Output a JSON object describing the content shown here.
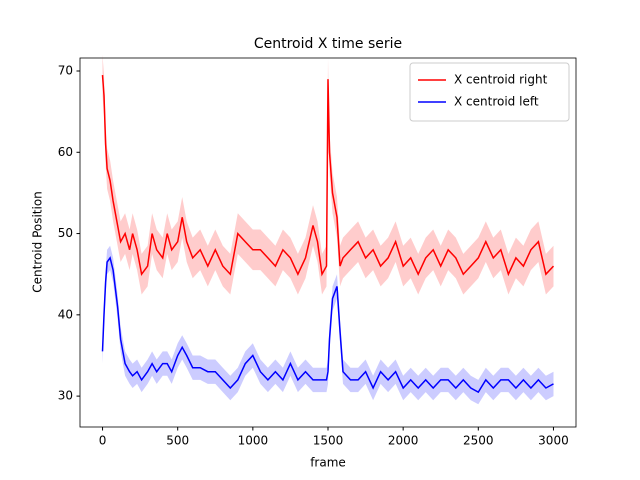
{
  "chart_data": {
    "type": "line",
    "title": "Centroid X time serie",
    "xlabel": "frame",
    "ylabel": "Centroid Position",
    "x": [
      0,
      10,
      20,
      30,
      50,
      70,
      100,
      120,
      150,
      180,
      200,
      230,
      260,
      300,
      330,
      360,
      400,
      430,
      460,
      500,
      530,
      560,
      600,
      650,
      700,
      750,
      800,
      850,
      900,
      950,
      1000,
      1050,
      1100,
      1150,
      1200,
      1250,
      1300,
      1350,
      1400,
      1430,
      1460,
      1490,
      1500,
      1510,
      1530,
      1560,
      1580,
      1600,
      1650,
      1700,
      1750,
      1800,
      1850,
      1900,
      1950,
      2000,
      2050,
      2100,
      2150,
      2200,
      2250,
      2300,
      2350,
      2400,
      2450,
      2500,
      2550,
      2600,
      2650,
      2700,
      2750,
      2800,
      2850,
      2900,
      2950,
      3000
    ],
    "series": [
      {
        "name": "X centroid right",
        "color": "#ff0000",
        "error": 2.5,
        "values": [
          69.5,
          67,
          61,
          58,
          56.5,
          54,
          51,
          49,
          50,
          48,
          50,
          48,
          45,
          46,
          50,
          48,
          47,
          50,
          48,
          49,
          52,
          49,
          47,
          48,
          46,
          48,
          46,
          45,
          50,
          49,
          48,
          48,
          47,
          46,
          48,
          47,
          45,
          47,
          51,
          49,
          45,
          46,
          69,
          60,
          55,
          52,
          46,
          47,
          48,
          49,
          47,
          48,
          46,
          47,
          49,
          46,
          47,
          45,
          47,
          48,
          46,
          48,
          47,
          45,
          46,
          47,
          49,
          47,
          48,
          45,
          47,
          46,
          48,
          49,
          45,
          46
        ]
      },
      {
        "name": "X centroid left",
        "color": "#0000ff",
        "error": 1.5,
        "values": [
          35.5,
          40,
          44,
          46.5,
          47,
          45.5,
          41,
          37,
          34,
          33,
          32.5,
          33,
          32,
          33,
          34,
          33,
          34,
          34,
          33,
          35,
          36,
          35,
          33.5,
          33.5,
          33,
          33,
          32,
          31,
          32,
          34,
          35,
          33,
          32,
          33,
          32,
          34,
          32,
          33,
          32,
          32,
          32,
          32,
          33,
          37,
          42,
          43.5,
          38,
          33,
          32,
          32,
          33,
          31,
          33,
          32,
          33,
          31,
          32,
          31,
          32,
          31,
          32,
          32,
          31,
          32,
          31,
          30.5,
          32,
          31,
          32,
          32,
          31,
          32,
          31,
          32,
          31,
          31.5
        ]
      }
    ],
    "xlim": [
      -150,
      3150
    ],
    "xticks": [
      0,
      500,
      1000,
      1500,
      2000,
      2500,
      3000
    ],
    "ylim": [
      26.2,
      71.6
    ],
    "yticks": [
      30,
      40,
      50,
      60,
      70
    ],
    "legend": "upper right"
  }
}
